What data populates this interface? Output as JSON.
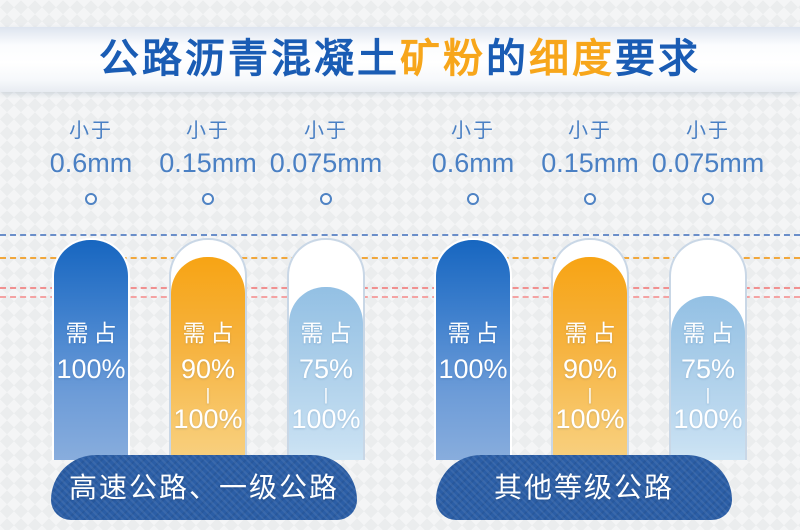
{
  "title": {
    "segments": [
      {
        "text": "公路沥青混凝土",
        "color": "#1a5cb4"
      },
      {
        "text": "矿粉",
        "color": "#f7a61b"
      },
      {
        "text": "的",
        "color": "#1a5cb4"
      },
      {
        "text": "细度",
        "color": "#f7a61b"
      },
      {
        "text": "要求",
        "color": "#1a5cb4"
      }
    ]
  },
  "ui": {
    "range_separator": "|"
  },
  "groups": [
    {
      "label": "高速公路、一级公路",
      "columns": [
        {
          "prefix": "小于",
          "size": "0.6mm",
          "requirement": "需占",
          "min": "100%",
          "max": ""
        },
        {
          "prefix": "小于",
          "size": "0.15mm",
          "requirement": "需占",
          "min": "90%",
          "max": "100%"
        },
        {
          "prefix": "小于",
          "size": "0.075mm",
          "requirement": "需占",
          "min": "75%",
          "max": "100%"
        }
      ]
    },
    {
      "label": "其他等级公路",
      "columns": [
        {
          "prefix": "小于",
          "size": "0.6mm",
          "requirement": "需占",
          "min": "100%",
          "max": ""
        },
        {
          "prefix": "小于",
          "size": "0.15mm",
          "requirement": "需占",
          "min": "90%",
          "max": "100%"
        },
        {
          "prefix": "小于",
          "size": "0.075mm",
          "requirement": "需占",
          "min": "75%",
          "max": "100%"
        }
      ]
    }
  ],
  "chart_data": {
    "type": "bar",
    "title": "公路沥青混凝土矿粉的细度要求",
    "categories": [
      "小于0.6mm",
      "小于0.15mm",
      "小于0.075mm"
    ],
    "series": [
      {
        "name": "高速公路、一级公路",
        "min_percent": [
          100,
          90,
          75
        ],
        "max_percent": [
          100,
          100,
          100
        ]
      },
      {
        "name": "其他等级公路",
        "min_percent": [
          100,
          90,
          75
        ],
        "max_percent": [
          100,
          100,
          100
        ]
      }
    ],
    "unit": "%",
    "ylim": [
      0,
      100
    ],
    "value_labels": [
      "需占100%",
      "需占90%-100%",
      "需占75%-100%"
    ],
    "legend_position": "none",
    "grid": "dashed-horizontal-guides"
  },
  "colors": {
    "title_blue": "#1a5cb4",
    "title_orange": "#f7a61b",
    "header_text": "#4a80c4",
    "guide_blue": "#6a8ec9",
    "guide_orange": "#f1a73c",
    "guide_pink": "#f19090",
    "bar_blue_top": "#1766c0",
    "bar_blue_bottom": "#88addd",
    "bar_orange_top": "#f7a414",
    "bar_orange_bottom": "#f7cf7f",
    "bar_lightblue_top": "#93c0e4",
    "bar_lightblue_bottom": "#cfe5f4",
    "base_blue": "#2b5ea6",
    "bar_text": "#ffffff"
  }
}
